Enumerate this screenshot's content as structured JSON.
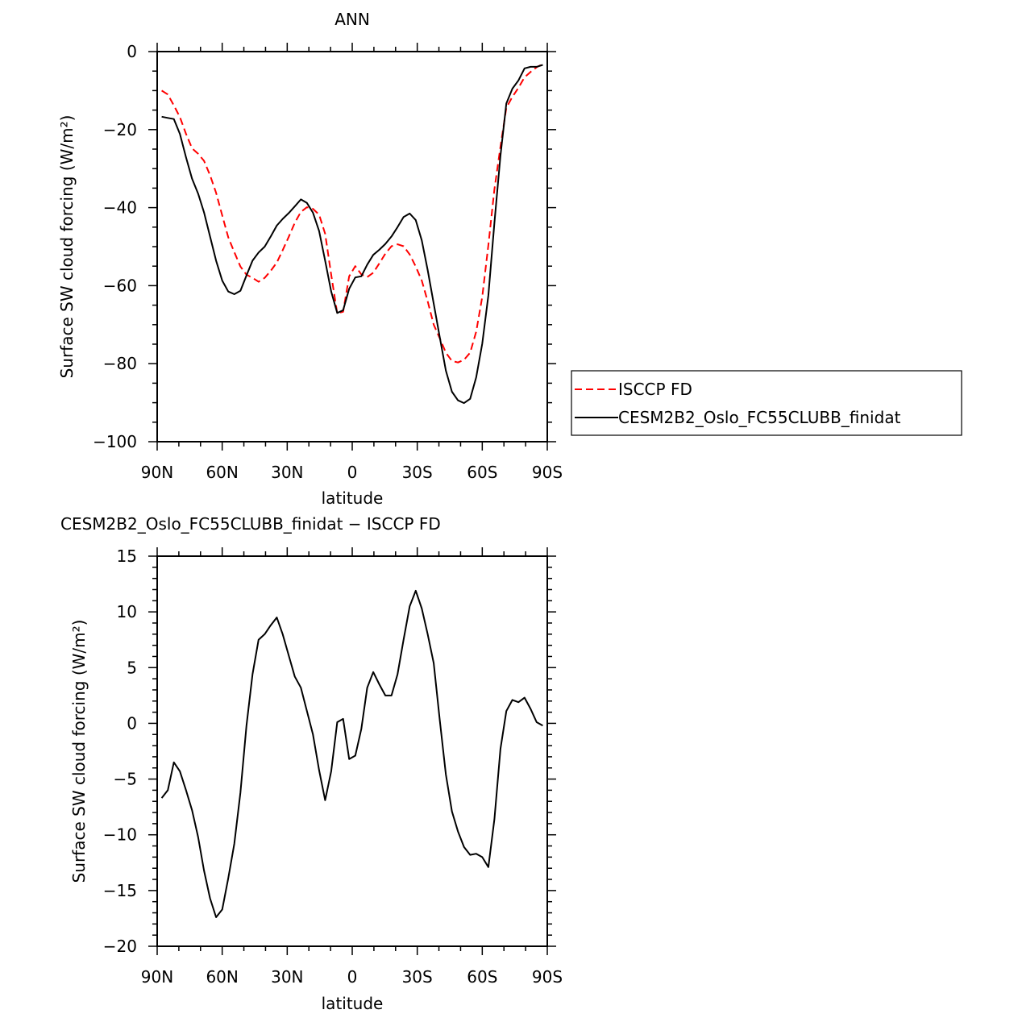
{
  "chart_data": [
    {
      "type": "line",
      "title": "ANN",
      "xlabel": "latitude",
      "ylabel": "Surface SW cloud forcing (W/m²)",
      "xlim": [
        90,
        -90
      ],
      "ylim": [
        -100,
        0
      ],
      "xticks": [
        90,
        60,
        30,
        0,
        -30,
        -60,
        -90
      ],
      "xtick_labels": [
        "90N",
        "60N",
        "30N",
        "0",
        "30S",
        "60S",
        "90S"
      ],
      "yticks": [
        0,
        -20,
        -40,
        -60,
        -80,
        -100
      ],
      "ytick_labels": [
        "0",
        "−20",
        "−40",
        "−60",
        "−80",
        "−100"
      ],
      "legend_placement": "right-outside",
      "series": [
        {
          "name": "ISCCP FD",
          "color": "#ff0000",
          "dash": "dashed",
          "values": [
            -10.0,
            -11.0,
            -13.8,
            -16.8,
            -21.1,
            -24.8,
            -26.2,
            -28.0,
            -31.7,
            -36.2,
            -42.0,
            -47.6,
            -51.4,
            -55.1,
            -57.2,
            -58.0,
            -59.0,
            -58.0,
            -56.2,
            -54.1,
            -50.9,
            -47.5,
            -43.9,
            -41.1,
            -39.9,
            -40.3,
            -41.8,
            -46.7,
            -57.2,
            -67.1,
            -66.7,
            -57.6,
            -55.0,
            -57.1,
            -57.8,
            -56.7,
            -54.3,
            -51.8,
            -49.9,
            -49.4,
            -49.9,
            -52.0,
            -55.1,
            -58.7,
            -64.0,
            -70.0,
            -73.5,
            -77.2,
            -79.3,
            -79.7,
            -79.0,
            -77.2,
            -71.8,
            -62.9,
            -49.6,
            -35.3,
            -24.4,
            -14.4,
            -11.6,
            -9.3,
            -6.6,
            -5.2,
            -4.0,
            -3.2
          ]
        },
        {
          "name": "CESM2B2_Oslo_FC55CLUBB_finidat",
          "color": "#000000",
          "dash": "solid",
          "values": [
            -16.7,
            -17.0,
            -17.3,
            -21.1,
            -27.1,
            -32.6,
            -36.4,
            -41.2,
            -47.4,
            -53.6,
            -58.7,
            -61.5,
            -62.2,
            -61.3,
            -57.4,
            -53.6,
            -51.5,
            -50.0,
            -47.4,
            -44.6,
            -42.9,
            -41.4,
            -39.7,
            -37.9,
            -38.8,
            -41.3,
            -46.0,
            -53.6,
            -61.5,
            -67.0,
            -66.3,
            -60.8,
            -57.9,
            -57.6,
            -54.6,
            -52.1,
            -50.8,
            -49.3,
            -47.4,
            -45.0,
            -42.4,
            -41.5,
            -43.2,
            -48.4,
            -56.0,
            -64.6,
            -73.2,
            -81.8,
            -87.2,
            -89.4,
            -90.1,
            -89.0,
            -83.5,
            -74.9,
            -62.5,
            -43.9,
            -26.7,
            -13.3,
            -9.5,
            -7.4,
            -4.3,
            -3.9,
            -3.9,
            -3.4
          ]
        }
      ]
    },
    {
      "type": "line",
      "title": "CESM2B2_Oslo_FC55CLUBB_finidat − ISCCP FD",
      "xlabel": "latitude",
      "ylabel": "Surface SW cloud forcing (W/m²)",
      "xlim": [
        90,
        -90
      ],
      "ylim": [
        -20,
        15
      ],
      "xticks": [
        90,
        60,
        30,
        0,
        -30,
        -60,
        -90
      ],
      "xtick_labels": [
        "90N",
        "60N",
        "30N",
        "0",
        "30S",
        "60S",
        "90S"
      ],
      "yticks": [
        15,
        10,
        5,
        0,
        -5,
        -10,
        -15,
        -20
      ],
      "ytick_labels": [
        "15",
        "10",
        "5",
        "0",
        "−5",
        "−10",
        "−15",
        "−20"
      ],
      "series": [
        {
          "name": "difference",
          "color": "#000000",
          "dash": "solid",
          "values": [
            -6.7,
            -6.0,
            -3.5,
            -4.3,
            -6.0,
            -7.8,
            -10.2,
            -13.2,
            -15.7,
            -17.4,
            -16.7,
            -13.9,
            -10.8,
            -6.2,
            -0.2,
            4.4,
            7.5,
            8.0,
            8.8,
            9.5,
            8.0,
            6.1,
            4.2,
            3.2,
            1.1,
            -1.0,
            -4.2,
            -6.9,
            -4.3,
            0.1,
            0.4,
            -3.2,
            -2.9,
            -0.5,
            3.2,
            4.6,
            3.5,
            2.5,
            2.5,
            4.4,
            7.5,
            10.5,
            11.9,
            10.3,
            8.0,
            5.4,
            0.3,
            -4.6,
            -7.9,
            -9.7,
            -11.1,
            -11.8,
            -11.7,
            -12.0,
            -12.9,
            -8.6,
            -2.3,
            1.1,
            2.1,
            1.9,
            2.3,
            1.3,
            0.1,
            -0.2
          ]
        }
      ]
    }
  ],
  "latitudes": [
    87.9,
    85.1,
    82.3,
    79.5,
    76.7,
    73.9,
    71.1,
    68.4,
    65.6,
    62.8,
    60.0,
    57.2,
    54.4,
    51.6,
    48.8,
    46.0,
    43.2,
    40.4,
    37.6,
    34.8,
    32.1,
    29.3,
    26.5,
    23.7,
    20.9,
    18.1,
    15.3,
    12.5,
    9.7,
    6.9,
    4.2,
    1.4,
    -1.4,
    -4.2,
    -6.9,
    -9.7,
    -12.5,
    -15.3,
    -18.1,
    -20.9,
    -23.7,
    -26.5,
    -29.3,
    -32.1,
    -34.8,
    -37.6,
    -40.4,
    -43.2,
    -46.0,
    -48.8,
    -51.6,
    -54.4,
    -57.2,
    -60.0,
    -62.8,
    -65.6,
    -68.4,
    -71.1,
    -73.9,
    -76.7,
    -79.5,
    -82.3,
    -85.1,
    -87.9
  ]
}
